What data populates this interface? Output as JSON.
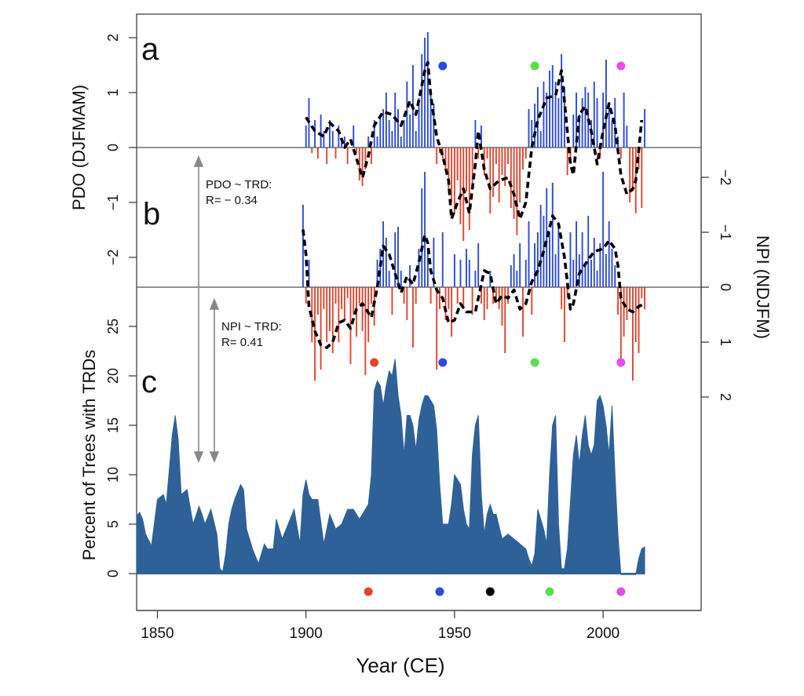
{
  "colors": {
    "pos": "#2b4bd9",
    "neg": "#e0452f",
    "area": "#2f6199",
    "dashed": "#000000",
    "frame": "#333333",
    "arrow": "#888888"
  },
  "panel_labels": {
    "a": "a",
    "b": "b",
    "c": "c"
  },
  "axes": {
    "x_title": "Year (CE)",
    "x_ticks": [
      "1850",
      "1900",
      "1950",
      "2000"
    ],
    "pdo_title": "PDO (DJFMAM)",
    "pdo_ticks": [
      "2",
      "1",
      "0",
      "−1",
      "−2"
    ],
    "npi_title": "NPI (NDJFM)",
    "npi_ticks": [
      "−2",
      "−1",
      "0",
      "1",
      "2"
    ],
    "pct_title": "Percent of Trees with TRDs",
    "pct_ticks": [
      "25",
      "20",
      "15",
      "10",
      "5",
      "0"
    ]
  },
  "annotations": {
    "pdo_corr_line1": "PDO ~ TRD:",
    "pdo_corr_line2": "R= − 0.34",
    "npi_corr_line1": "NPI ~ TRD:",
    "npi_corr_line2": "R= 0.41"
  },
  "chart_data": [
    {
      "panel": "a",
      "type": "bar",
      "ylabel": "PDO (DJFMAM)",
      "xlim": [
        1843,
        2033
      ],
      "ylim": [
        -2.8,
        2.3
      ],
      "x_start": 1900,
      "values": [
        0.4,
        0.9,
        -0.1,
        0.5,
        -0.2,
        0.6,
        0.3,
        -0.3,
        0.5,
        0.3,
        -0.2,
        0.4,
        0.1,
        0.2,
        -0.3,
        0.0,
        0.4,
        -0.1,
        -0.6,
        -0.7,
        -0.4,
        0.2,
        -0.3,
        0.5,
        0.2,
        0.6,
        0.7,
        1.0,
        0.5,
        0.3,
        1.0,
        0.7,
        0.2,
        0.5,
        1.2,
        0.6,
        1.5,
        0.3,
        0.9,
        1.7,
        2.0,
        2.1,
        1.0,
        0.8,
        -0.3,
        -0.1,
        -0.2,
        -0.4,
        -0.8,
        -1.0,
        -1.2,
        -0.6,
        -1.4,
        -1.7,
        -0.8,
        -1.5,
        -0.7,
        0.5,
        -0.2,
        0.4,
        -0.5,
        -0.2,
        -1.2,
        -0.9,
        -0.3,
        -1.0,
        -0.5,
        -0.7,
        -0.3,
        -1.1,
        -1.3,
        -1.6,
        -1.0,
        -0.4,
        -0.2,
        0.7,
        0.5,
        0.8,
        1.1,
        0.3,
        1.2,
        1.0,
        1.4,
        1.5,
        1.2,
        0.9,
        1.7,
        1.1,
        -0.5,
        -0.3,
        0.6,
        1.0,
        0.6,
        0.9,
        1.1,
        1.0,
        0.5,
        1.2,
        0.9,
        -0.2,
        1.0,
        1.6,
        0.8,
        0.5,
        0.9,
        0.2,
        -0.2,
        1.0,
        0.4,
        -1.0,
        -0.8,
        -1.2,
        -0.4,
        -1.1,
        0.7
      ],
      "smooth": [
        [
          1900,
          0.55
        ],
        [
          1903,
          0.3
        ],
        [
          1906,
          0.2
        ],
        [
          1908,
          0.45
        ],
        [
          1911,
          0.3
        ],
        [
          1913,
          0.0
        ],
        [
          1915,
          0.15
        ],
        [
          1917,
          -0.2
        ],
        [
          1919,
          -0.55
        ],
        [
          1921,
          -0.15
        ],
        [
          1923,
          0.4
        ],
        [
          1926,
          0.65
        ],
        [
          1929,
          0.6
        ],
        [
          1932,
          0.4
        ],
        [
          1935,
          0.85
        ],
        [
          1937,
          0.6
        ],
        [
          1940,
          1.4
        ],
        [
          1941,
          1.55
        ],
        [
          1942,
          0.95
        ],
        [
          1944,
          0.2
        ],
        [
          1946,
          -0.15
        ],
        [
          1948,
          -0.6
        ],
        [
          1949,
          -1.3
        ],
        [
          1951,
          -1.0
        ],
        [
          1953,
          -0.75
        ],
        [
          1955,
          -1.2
        ],
        [
          1957,
          -0.3
        ],
        [
          1958,
          0.3
        ],
        [
          1960,
          -0.4
        ],
        [
          1962,
          -0.75
        ],
        [
          1965,
          -0.6
        ],
        [
          1968,
          -0.55
        ],
        [
          1970,
          -0.85
        ],
        [
          1972,
          -1.3
        ],
        [
          1974,
          -1.0
        ],
        [
          1976,
          0.0
        ],
        [
          1978,
          0.5
        ],
        [
          1981,
          0.9
        ],
        [
          1984,
          0.95
        ],
        [
          1986,
          1.4
        ],
        [
          1987,
          0.85
        ],
        [
          1989,
          -0.3
        ],
        [
          1990,
          -0.5
        ],
        [
          1992,
          0.6
        ],
        [
          1994,
          0.75
        ],
        [
          1996,
          0.3
        ],
        [
          1998,
          -0.3
        ],
        [
          2000,
          0.3
        ],
        [
          2002,
          0.8
        ],
        [
          2004,
          0.4
        ],
        [
          2006,
          -0.5
        ],
        [
          2008,
          -0.85
        ],
        [
          2010,
          -0.75
        ],
        [
          2011,
          -0.6
        ],
        [
          2013,
          0.5
        ]
      ],
      "markers": [
        {
          "x": 1946,
          "color": "#2b4bd9"
        },
        {
          "x": 1977,
          "color": "#57e04a"
        },
        {
          "x": 2006,
          "color": "#e44ee8"
        }
      ]
    },
    {
      "panel": "b",
      "type": "bar",
      "ylabel": "NPI (NDJFM)",
      "ylim": [
        -2.8,
        2.8
      ],
      "x_start": 1899,
      "values": [
        -1.5,
        0.3,
        -0.5,
        1.0,
        1.7,
        0.5,
        1.5,
        0.4,
        1.0,
        0.8,
        1.2,
        0.3,
        1.0,
        0.4,
        0.6,
        0.2,
        1.4,
        0.5,
        0.9,
        0.3,
        0.8,
        1.6,
        1.0,
        0.3,
        0.7,
        -0.5,
        -0.7,
        -1.2,
        -0.9,
        -0.3,
        0.5,
        -1.0,
        -1.1,
        -0.3,
        0.3,
        0.6,
        -0.4,
        1.1,
        0.3,
        -0.7,
        -1.8,
        -2.1,
        -0.7,
        0.3,
        -0.9,
        1.5,
        0.4,
        -1.0,
        0.6,
        0.4,
        0.9,
        -0.6,
        0.3,
        -0.5,
        0.4,
        -0.7,
        -0.5,
        0.5,
        -0.3,
        -0.8,
        0.3,
        0.6,
        0.4,
        -0.3,
        0.3,
        0.2,
        0.4,
        0.7,
        1.2,
        0.3,
        -0.4,
        -0.6,
        -0.3,
        -0.8,
        0.9,
        -0.5,
        -1.2,
        0.5,
        -0.8,
        -1.0,
        -1.5,
        -1.3,
        -1.8,
        -1.0,
        -1.9,
        -0.6,
        -1.1,
        0.4,
        1.0,
        0.2,
        -1.0,
        -0.5,
        -1.2,
        -0.6,
        -1.0,
        -0.4,
        -1.3,
        -0.5,
        -0.9,
        -0.3,
        -0.8,
        -2.1,
        -0.6,
        -1.2,
        -0.7,
        -0.4,
        0.5,
        1.3,
        0.9,
        0.6,
        0.4,
        1.7,
        1.0,
        1.2,
        0.2,
        0.4
      ],
      "smooth": [
        [
          1899,
          -1.05
        ],
        [
          1900,
          -0.6
        ],
        [
          1901,
          0.35
        ],
        [
          1903,
          0.8
        ],
        [
          1905,
          1.05
        ],
        [
          1907,
          1.1
        ],
        [
          1909,
          1.0
        ],
        [
          1911,
          0.65
        ],
        [
          1913,
          0.6
        ],
        [
          1915,
          0.75
        ],
        [
          1917,
          0.4
        ],
        [
          1919,
          0.3
        ],
        [
          1922,
          0.55
        ],
        [
          1924,
          0.0
        ],
        [
          1926,
          -0.75
        ],
        [
          1928,
          -0.6
        ],
        [
          1930,
          -0.25
        ],
        [
          1932,
          0.1
        ],
        [
          1934,
          -0.2
        ],
        [
          1936,
          -0.05
        ],
        [
          1938,
          -0.45
        ],
        [
          1940,
          -0.95
        ],
        [
          1941,
          -0.8
        ],
        [
          1942,
          -0.3
        ],
        [
          1944,
          0.05
        ],
        [
          1946,
          0.2
        ],
        [
          1948,
          0.65
        ],
        [
          1950,
          0.6
        ],
        [
          1952,
          0.3
        ],
        [
          1954,
          0.45
        ],
        [
          1957,
          0.45
        ],
        [
          1960,
          -0.3
        ],
        [
          1962,
          -0.25
        ],
        [
          1964,
          0.3
        ],
        [
          1966,
          0.15
        ],
        [
          1968,
          0.2
        ],
        [
          1970,
          0.05
        ],
        [
          1972,
          0.4
        ],
        [
          1974,
          0.3
        ],
        [
          1976,
          -0.1
        ],
        [
          1978,
          -0.3
        ],
        [
          1980,
          -0.65
        ],
        [
          1983,
          -1.3
        ],
        [
          1985,
          -1.15
        ],
        [
          1987,
          -0.55
        ],
        [
          1989,
          0.4
        ],
        [
          1990,
          0.3
        ],
        [
          1992,
          -0.25
        ],
        [
          1995,
          -0.5
        ],
        [
          1997,
          -0.65
        ],
        [
          2000,
          -0.7
        ],
        [
          2002,
          -0.85
        ],
        [
          2004,
          -0.7
        ],
        [
          2005,
          -0.4
        ],
        [
          2006,
          0.2
        ],
        [
          2008,
          0.4
        ],
        [
          2010,
          0.45
        ],
        [
          2012,
          0.35
        ],
        [
          2014,
          0.3
        ]
      ],
      "markers": [
        {
          "x": 1923,
          "color": "#e0452f"
        },
        {
          "x": 1946,
          "color": "#2b4bd9"
        },
        {
          "x": 1977,
          "color": "#57e04a"
        },
        {
          "x": 2006,
          "color": "#e44ee8"
        }
      ]
    },
    {
      "panel": "c",
      "type": "area",
      "ylabel": "Percent of Trees with TRDs",
      "xlabel": "Year (CE)",
      "ylim": [
        -3.5,
        28
      ],
      "x": [
        1843,
        1844,
        1845,
        1846,
        1848,
        1850,
        1852,
        1853,
        1855,
        1856,
        1857,
        1858,
        1860,
        1862,
        1864,
        1865,
        1866,
        1868,
        1870,
        1871,
        1872,
        1873,
        1874,
        1875,
        1876,
        1878,
        1879,
        1880,
        1882,
        1884,
        1886,
        1887,
        1889,
        1890,
        1892,
        1894,
        1896,
        1898,
        1899,
        1900,
        1901,
        1902,
        1904,
        1906,
        1908,
        1910,
        1912,
        1914,
        1916,
        1918,
        1920,
        1921,
        1922,
        1923,
        1924,
        1925,
        1926,
        1927,
        1928,
        1929,
        1930,
        1931,
        1932,
        1933,
        1934,
        1935,
        1936,
        1937,
        1938,
        1939,
        1940,
        1941,
        1942,
        1943,
        1944,
        1945,
        1946,
        1947,
        1948,
        1949,
        1950,
        1951,
        1952,
        1953,
        1954,
        1955,
        1956,
        1957,
        1958,
        1959,
        1960,
        1961,
        1962,
        1963,
        1964,
        1966,
        1968,
        1970,
        1972,
        1974,
        1975,
        1976,
        1977,
        1978,
        1979,
        1980,
        1981,
        1982,
        1983,
        1984,
        1985,
        1986,
        1987,
        1988,
        1990,
        1991,
        1992,
        1993,
        1994,
        1995,
        1996,
        1997,
        1998,
        1999,
        2000,
        2001,
        2002,
        2003,
        2004,
        2005,
        2006,
        2007,
        2008,
        2009,
        2010,
        2011,
        2012,
        2013,
        2014
      ],
      "values": [
        5.8,
        6.2,
        5.5,
        4.0,
        2.8,
        7.5,
        8.0,
        7.0,
        14.0,
        16.0,
        13.5,
        8.0,
        8.5,
        5.0,
        6.8,
        6.0,
        5.0,
        6.5,
        4.0,
        0.5,
        0.2,
        2.0,
        5.0,
        6.5,
        7.5,
        9.0,
        8.5,
        4.5,
        2.5,
        1.0,
        3.0,
        2.5,
        2.5,
        5.5,
        3.5,
        5.0,
        6.5,
        3.0,
        8.0,
        9.5,
        8.0,
        7.5,
        7.5,
        3.0,
        6.0,
        4.5,
        5.0,
        6.5,
        6.5,
        5.5,
        6.5,
        7.0,
        10.0,
        18.5,
        19.5,
        19.0,
        17.0,
        19.0,
        20.5,
        20.0,
        21.7,
        18.0,
        16.0,
        12.0,
        16.0,
        16.0,
        15.0,
        12.5,
        15.5,
        17.0,
        18.0,
        18.0,
        17.5,
        17.0,
        14.5,
        9.0,
        5.0,
        5.0,
        5.0,
        7.0,
        10.0,
        9.5,
        9.0,
        6.5,
        5.0,
        4.5,
        12.0,
        15.0,
        16.0,
        8.0,
        4.0,
        6.0,
        7.0,
        6.0,
        6.0,
        3.5,
        4.0,
        3.5,
        3.0,
        2.5,
        1.5,
        0.8,
        2.0,
        6.5,
        5.5,
        4.5,
        3.0,
        10.0,
        15.0,
        16.0,
        5.0,
        0.5,
        0.5,
        2.5,
        12.0,
        14.0,
        11.0,
        14.0,
        16.0,
        13.0,
        12.0,
        13.0,
        17.5,
        18.0,
        17.0,
        15.0,
        12.0,
        17.0,
        10.0,
        4.0,
        -0.1,
        -0.1,
        -0.1,
        -0.1,
        -0.1,
        -0.1,
        1.5,
        2.5,
        2.7
      ],
      "markers": [
        {
          "x": 1921,
          "color": "#e0452f"
        },
        {
          "x": 1945,
          "color": "#2b4bd9"
        },
        {
          "x": 1962,
          "color": "#000000"
        },
        {
          "x": 1982,
          "color": "#57e04a"
        },
        {
          "x": 2006,
          "color": "#e44ee8"
        }
      ]
    }
  ]
}
